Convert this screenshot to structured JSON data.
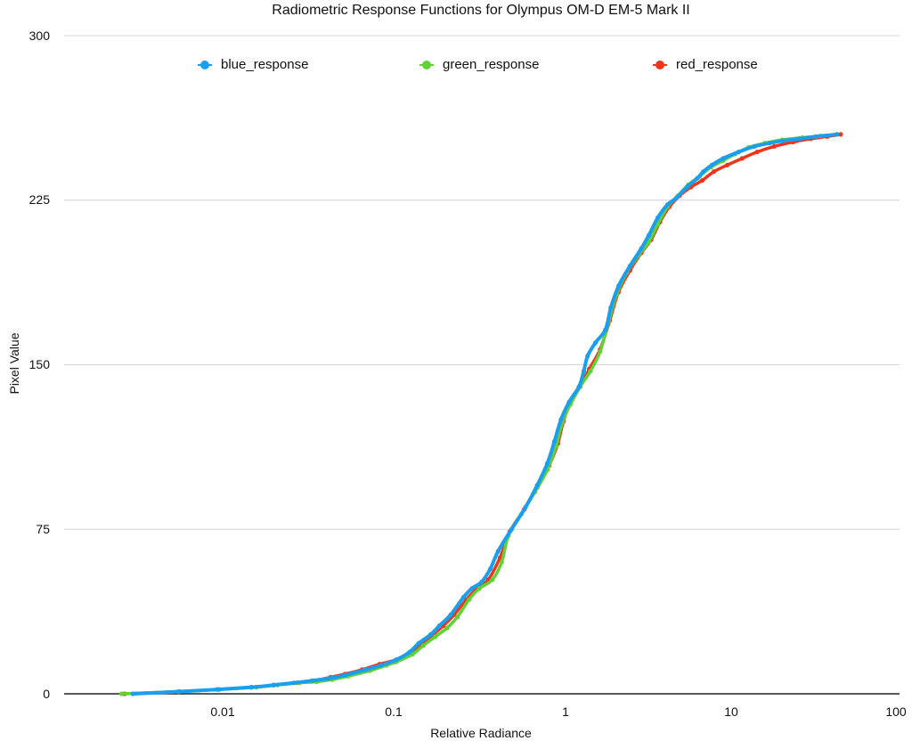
{
  "chart_data": {
    "type": "line",
    "title": "Radiometric Response Functions for Olympus OM-D EM-5 Mark II",
    "xlabel": "Relative Radiance",
    "ylabel": "Pixel Value",
    "xscale": "log",
    "xlim": [
      0.00115,
      100
    ],
    "ylim": [
      0,
      300
    ],
    "x_ticks": [
      "0.01",
      "0.1",
      "1",
      "10",
      "100"
    ],
    "y_ticks": [
      "0",
      "75",
      "150",
      "225",
      "300"
    ],
    "grid": "horizontal",
    "legend_position": "top",
    "series": [
      {
        "name": "blue_response",
        "color": "#1a9ff0",
        "points": [
          [
            0.0028,
            0
          ],
          [
            0.0053,
            1
          ],
          [
            0.0088,
            2
          ],
          [
            0.014,
            3
          ],
          [
            0.019,
            4
          ],
          [
            0.025,
            5
          ],
          [
            0.032,
            6
          ],
          [
            0.04,
            7
          ],
          [
            0.05,
            8.5
          ],
          [
            0.066,
            11
          ],
          [
            0.082,
            13
          ],
          [
            0.1,
            15.5
          ],
          [
            0.12,
            19
          ],
          [
            0.136,
            23
          ],
          [
            0.16,
            27
          ],
          [
            0.18,
            31
          ],
          [
            0.21,
            36
          ],
          [
            0.25,
            44
          ],
          [
            0.28,
            48
          ],
          [
            0.32,
            51
          ],
          [
            0.36,
            57
          ],
          [
            0.4,
            65
          ],
          [
            0.48,
            75
          ],
          [
            0.58,
            85
          ],
          [
            0.68,
            95
          ],
          [
            0.78,
            105
          ],
          [
            0.86,
            115
          ],
          [
            0.94,
            125
          ],
          [
            1.05,
            133
          ],
          [
            1.2,
            140
          ],
          [
            1.28,
            147
          ],
          [
            1.35,
            154
          ],
          [
            1.5,
            160
          ],
          [
            1.72,
            166
          ],
          [
            1.85,
            176
          ],
          [
            2.06,
            186
          ],
          [
            2.4,
            195
          ],
          [
            2.8,
            203
          ],
          [
            3.1,
            209
          ],
          [
            3.5,
            217
          ],
          [
            4.0,
            223
          ],
          [
            4.5,
            226
          ],
          [
            5.2,
            231
          ],
          [
            6.0,
            235
          ],
          [
            6.5,
            238
          ],
          [
            7.3,
            241
          ],
          [
            8.5,
            244
          ],
          [
            10.5,
            247
          ],
          [
            13,
            249.5
          ],
          [
            16,
            251
          ],
          [
            19,
            252
          ],
          [
            24,
            253
          ],
          [
            30,
            254
          ],
          [
            40,
            255
          ]
        ]
      },
      {
        "name": "green_response",
        "color": "#5fd235",
        "points": [
          [
            0.0024,
            0
          ],
          [
            0.0052,
            1
          ],
          [
            0.0091,
            2
          ],
          [
            0.015,
            3
          ],
          [
            0.02,
            4
          ],
          [
            0.027,
            5
          ],
          [
            0.034,
            5.5
          ],
          [
            0.042,
            6.5
          ],
          [
            0.052,
            8
          ],
          [
            0.07,
            10.5
          ],
          [
            0.088,
            13
          ],
          [
            0.1,
            14.5
          ],
          [
            0.125,
            18
          ],
          [
            0.145,
            22
          ],
          [
            0.17,
            26
          ],
          [
            0.2,
            30
          ],
          [
            0.23,
            35
          ],
          [
            0.27,
            43
          ],
          [
            0.31,
            48
          ],
          [
            0.37,
            52
          ],
          [
            0.42,
            60
          ],
          [
            0.46,
            72
          ],
          [
            0.55,
            82
          ],
          [
            0.66,
            92
          ],
          [
            0.78,
            102
          ],
          [
            0.88,
            113
          ],
          [
            0.96,
            124
          ],
          [
            1.07,
            132
          ],
          [
            1.22,
            140
          ],
          [
            1.4,
            147
          ],
          [
            1.6,
            156
          ],
          [
            1.8,
            170
          ],
          [
            2.0,
            182
          ],
          [
            2.3,
            192
          ],
          [
            2.7,
            200
          ],
          [
            3.1,
            206
          ],
          [
            3.5,
            214
          ],
          [
            4.0,
            222
          ],
          [
            4.6,
            227
          ],
          [
            5.3,
            232
          ],
          [
            6.2,
            236
          ],
          [
            7.2,
            240
          ],
          [
            8.5,
            243
          ],
          [
            10,
            246
          ],
          [
            12,
            249
          ],
          [
            15,
            251
          ],
          [
            19,
            252.5
          ],
          [
            25,
            253.5
          ],
          [
            32,
            254.3
          ],
          [
            40,
            255
          ]
        ]
      },
      {
        "name": "red_response",
        "color": "#f0341a",
        "points": [
          [
            0.0025,
            0
          ],
          [
            0.0052,
            1
          ],
          [
            0.009,
            2
          ],
          [
            0.014,
            3
          ],
          [
            0.019,
            4
          ],
          [
            0.026,
            5
          ],
          [
            0.033,
            6
          ],
          [
            0.041,
            7.5
          ],
          [
            0.05,
            9
          ],
          [
            0.063,
            11
          ],
          [
            0.08,
            13.5
          ],
          [
            0.1,
            15.5
          ],
          [
            0.12,
            18.5
          ],
          [
            0.14,
            22.5
          ],
          [
            0.165,
            27
          ],
          [
            0.19,
            31
          ],
          [
            0.22,
            36
          ],
          [
            0.26,
            43
          ],
          [
            0.3,
            48
          ],
          [
            0.35,
            52
          ],
          [
            0.41,
            62
          ],
          [
            0.47,
            74
          ],
          [
            0.57,
            84
          ],
          [
            0.68,
            94
          ],
          [
            0.8,
            104
          ],
          [
            0.9,
            114
          ],
          [
            0.97,
            124
          ],
          [
            1.06,
            132
          ],
          [
            1.22,
            140
          ],
          [
            1.38,
            148
          ],
          [
            1.6,
            157
          ],
          [
            1.82,
            170
          ],
          [
            2.05,
            183
          ],
          [
            2.4,
            193
          ],
          [
            2.8,
            201
          ],
          [
            3.2,
            207
          ],
          [
            3.6,
            215
          ],
          [
            4.1,
            222
          ],
          [
            4.7,
            227
          ],
          [
            5.5,
            231
          ],
          [
            6.4,
            234
          ],
          [
            7.5,
            238
          ],
          [
            9,
            241
          ],
          [
            11,
            244
          ],
          [
            13.5,
            247
          ],
          [
            17,
            249.5
          ],
          [
            22,
            251.5
          ],
          [
            28,
            253
          ],
          [
            35,
            254
          ],
          [
            42,
            255
          ]
        ]
      }
    ]
  },
  "title": "Radiometric Response Functions for Olympus OM-D EM-5 Mark II",
  "legend": [
    {
      "label": "blue_response",
      "color": "#1a9ff0"
    },
    {
      "label": "green_response",
      "color": "#5fd235"
    },
    {
      "label": "red_response",
      "color": "#f0341a"
    }
  ],
  "axes": {
    "xlabel": "Relative Radiance",
    "ylabel": "Pixel Value",
    "x_ticks": [
      "0.01",
      "0.1",
      "1",
      "10",
      "100"
    ],
    "y_ticks": [
      "300",
      "225",
      "150",
      "75",
      "0"
    ]
  }
}
